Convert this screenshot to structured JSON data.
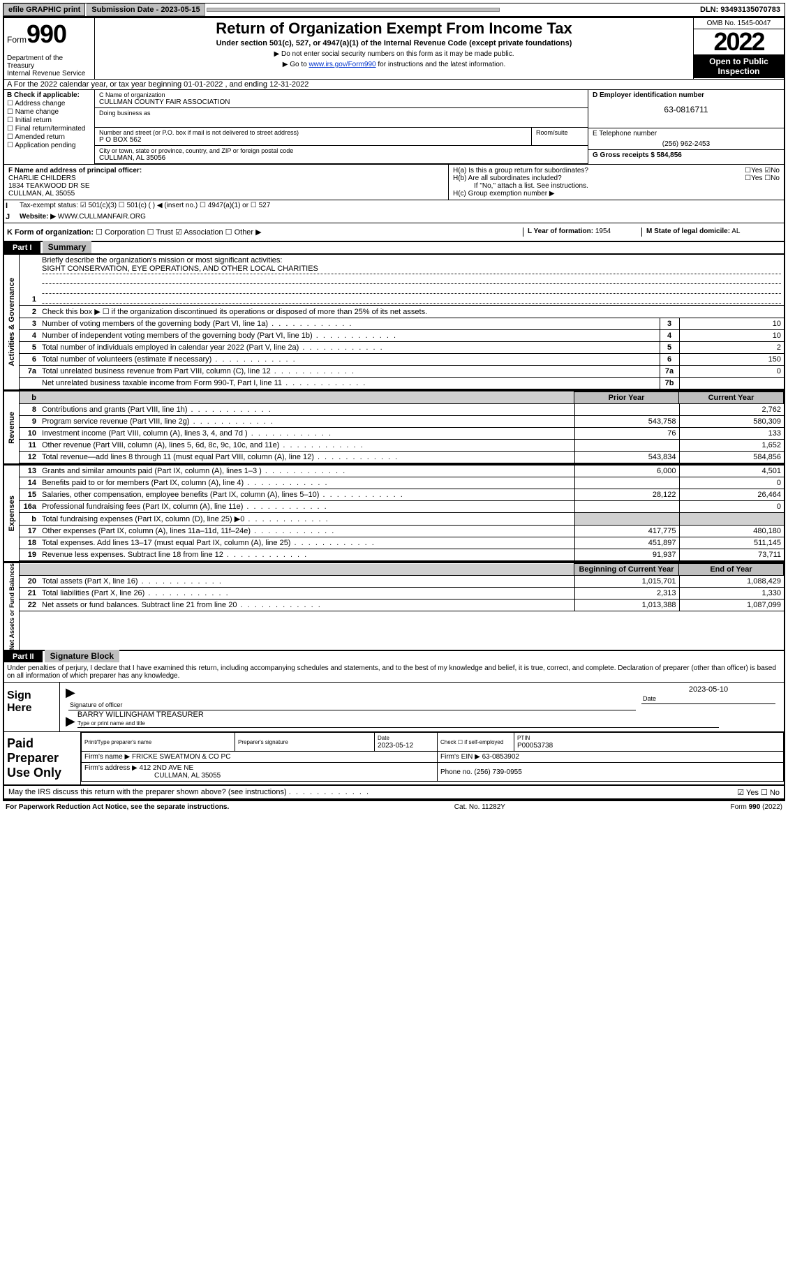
{
  "topbar": {
    "efile": "efile GRAPHIC print",
    "submission_label": "Submission Date - 2023-05-15",
    "dln": "DLN: 93493135070783"
  },
  "header": {
    "form_label": "Form",
    "form_number": "990",
    "title": "Return of Organization Exempt From Income Tax",
    "subtitle": "Under section 501(c), 527, or 4947(a)(1) of the Internal Revenue Code (except private foundations)",
    "note1": "▶ Do not enter social security numbers on this form as it may be made public.",
    "note2_pre": "▶ Go to ",
    "note2_link": "www.irs.gov/Form990",
    "note2_post": " for instructions and the latest information.",
    "dept": "Department of the Treasury\nInternal Revenue Service",
    "omb": "OMB No. 1545-0047",
    "year": "2022",
    "open": "Open to Public Inspection"
  },
  "lineA": "A For the 2022 calendar year, or tax year beginning 01-01-2022   , and ending 12-31-2022",
  "sectionB": {
    "label": "B Check if applicable:",
    "opts": [
      "Address change",
      "Name change",
      "Initial return",
      "Final return/terminated",
      "Amended return",
      "Application pending"
    ]
  },
  "sectionC": {
    "name_label": "C Name of organization",
    "name": "CULLMAN COUNTY FAIR ASSOCIATION",
    "dba_label": "Doing business as",
    "addr_label": "Number and street (or P.O. box if mail is not delivered to street address)",
    "addr": "P O BOX 562",
    "room_label": "Room/suite",
    "city_label": "City or town, state or province, country, and ZIP or foreign postal code",
    "city": "CULLMAN, AL  35056"
  },
  "sectionD": {
    "label": "D Employer identification number",
    "value": "63-0816711"
  },
  "sectionE": {
    "label": "E Telephone number",
    "value": "(256) 962-2453"
  },
  "sectionG": {
    "label": "G Gross receipts $",
    "value": "584,856"
  },
  "sectionF": {
    "label": "F Name and address of principal officer:",
    "name": "CHARLIE CHILDERS",
    "addr1": "1834 TEAKWOOD DR SE",
    "addr2": "CULLMAN, AL  35055"
  },
  "sectionH": {
    "ha": "H(a)  Is this a group return for subordinates?",
    "ha_yes": "Yes",
    "ha_no": "No",
    "hb": "H(b)  Are all subordinates included?",
    "hb_note": "If \"No,\" attach a list. See instructions.",
    "hc": "H(c)  Group exemption number ▶"
  },
  "sectionI": {
    "label": "Tax-exempt status:",
    "opt1": "501(c)(3)",
    "opt2": "501(c) (  ) ◀ (insert no.)",
    "opt3": "4947(a)(1) or",
    "opt4": "527"
  },
  "sectionJ": {
    "label": "Website: ▶",
    "value": "WWW.CULLMANFAIR.ORG"
  },
  "sectionK": {
    "label": "K Form of organization:",
    "opts": [
      "Corporation",
      "Trust",
      "Association",
      "Other ▶"
    ]
  },
  "sectionL": {
    "label": "L Year of formation:",
    "value": "1954"
  },
  "sectionM": {
    "label": "M State of legal domicile:",
    "value": "AL"
  },
  "partI": {
    "hdr": "Part I",
    "title": "Summary",
    "line1_label": "Briefly describe the organization's mission or most significant activities:",
    "line1_value": "SIGHT CONSERVATION, EYE OPERATIONS, AND OTHER LOCAL CHARITIES",
    "line2": "Check this box ▶ ☐  if the organization discontinued its operations or disposed of more than 25% of its net assets.",
    "rows_gov": [
      {
        "n": "3",
        "d": "Number of voting members of the governing body (Part VI, line 1a)",
        "k": "3",
        "v": "10"
      },
      {
        "n": "4",
        "d": "Number of independent voting members of the governing body (Part VI, line 1b)",
        "k": "4",
        "v": "10"
      },
      {
        "n": "5",
        "d": "Total number of individuals employed in calendar year 2022 (Part V, line 2a)",
        "k": "5",
        "v": "2"
      },
      {
        "n": "6",
        "d": "Total number of volunteers (estimate if necessary)",
        "k": "6",
        "v": "150"
      },
      {
        "n": "7a",
        "d": "Total unrelated business revenue from Part VIII, column (C), line 12",
        "k": "7a",
        "v": "0"
      },
      {
        "n": "",
        "d": "Net unrelated business taxable income from Form 990-T, Part I, line 11",
        "k": "7b",
        "v": ""
      }
    ],
    "col_prior": "Prior Year",
    "col_current": "Current Year",
    "rows_rev": [
      {
        "n": "8",
        "d": "Contributions and grants (Part VIII, line 1h)",
        "p": "",
        "c": "2,762"
      },
      {
        "n": "9",
        "d": "Program service revenue (Part VIII, line 2g)",
        "p": "543,758",
        "c": "580,309"
      },
      {
        "n": "10",
        "d": "Investment income (Part VIII, column (A), lines 3, 4, and 7d )",
        "p": "76",
        "c": "133"
      },
      {
        "n": "11",
        "d": "Other revenue (Part VIII, column (A), lines 5, 6d, 8c, 9c, 10c, and 11e)",
        "p": "",
        "c": "1,652"
      },
      {
        "n": "12",
        "d": "Total revenue—add lines 8 through 11 (must equal Part VIII, column (A), line 12)",
        "p": "543,834",
        "c": "584,856"
      }
    ],
    "rows_exp": [
      {
        "n": "13",
        "d": "Grants and similar amounts paid (Part IX, column (A), lines 1–3 )",
        "p": "6,000",
        "c": "4,501"
      },
      {
        "n": "14",
        "d": "Benefits paid to or for members (Part IX, column (A), line 4)",
        "p": "",
        "c": "0"
      },
      {
        "n": "15",
        "d": "Salaries, other compensation, employee benefits (Part IX, column (A), lines 5–10)",
        "p": "28,122",
        "c": "26,464"
      },
      {
        "n": "16a",
        "d": "Professional fundraising fees (Part IX, column (A), line 11e)",
        "p": "",
        "c": "0"
      },
      {
        "n": "b",
        "d": "Total fundraising expenses (Part IX, column (D), line 25) ▶0",
        "p": "",
        "c": "",
        "shade": true
      },
      {
        "n": "17",
        "d": "Other expenses (Part IX, column (A), lines 11a–11d, 11f–24e)",
        "p": "417,775",
        "c": "480,180"
      },
      {
        "n": "18",
        "d": "Total expenses. Add lines 13–17 (must equal Part IX, column (A), line 25)",
        "p": "451,897",
        "c": "511,145"
      },
      {
        "n": "19",
        "d": "Revenue less expenses. Subtract line 18 from line 12",
        "p": "91,937",
        "c": "73,711"
      }
    ],
    "col_begin": "Beginning of Current Year",
    "col_end": "End of Year",
    "rows_net": [
      {
        "n": "20",
        "d": "Total assets (Part X, line 16)",
        "p": "1,015,701",
        "c": "1,088,429"
      },
      {
        "n": "21",
        "d": "Total liabilities (Part X, line 26)",
        "p": "2,313",
        "c": "1,330"
      },
      {
        "n": "22",
        "d": "Net assets or fund balances. Subtract line 21 from line 20",
        "p": "1,013,388",
        "c": "1,087,099"
      }
    ],
    "side_gov": "Activities & Governance",
    "side_rev": "Revenue",
    "side_exp": "Expenses",
    "side_net": "Net Assets or Fund Balances"
  },
  "partII": {
    "hdr": "Part II",
    "title": "Signature Block",
    "decl": "Under penalties of perjury, I declare that I have examined this return, including accompanying schedules and statements, and to the best of my knowledge and belief, it is true, correct, and complete. Declaration of preparer (other than officer) is based on all information of which preparer has any knowledge.",
    "sign_here": "Sign Here",
    "sig_officer": "Signature of officer",
    "sig_date": "Date",
    "sig_date_val": "2023-05-10",
    "officer_name": "BARRY WILLINGHAM  TREASURER",
    "type_name": "Type or print name and title",
    "paid": "Paid Preparer Use Only",
    "prep_name_lbl": "Print/Type preparer's name",
    "prep_sig_lbl": "Preparer's signature",
    "prep_date_lbl": "Date",
    "prep_date": "2023-05-12",
    "check_lbl": "Check ☐ if self-employed",
    "ptin_lbl": "PTIN",
    "ptin": "P00053738",
    "firm_name_lbl": "Firm's name    ▶",
    "firm_name": "FRICKE SWEATMON & CO PC",
    "firm_ein_lbl": "Firm's EIN ▶",
    "firm_ein": "63-0853902",
    "firm_addr_lbl": "Firm's address ▶",
    "firm_addr1": "412 2ND AVE NE",
    "firm_addr2": "CULLMAN, AL  35055",
    "phone_lbl": "Phone no.",
    "phone": "(256) 739-0955",
    "discuss": "May the IRS discuss this return with the preparer shown above? (see instructions)",
    "yes": "Yes",
    "no": "No"
  },
  "footer": {
    "left": "For Paperwork Reduction Act Notice, see the separate instructions.",
    "mid": "Cat. No. 11282Y",
    "right": "Form 990 (2022)"
  }
}
